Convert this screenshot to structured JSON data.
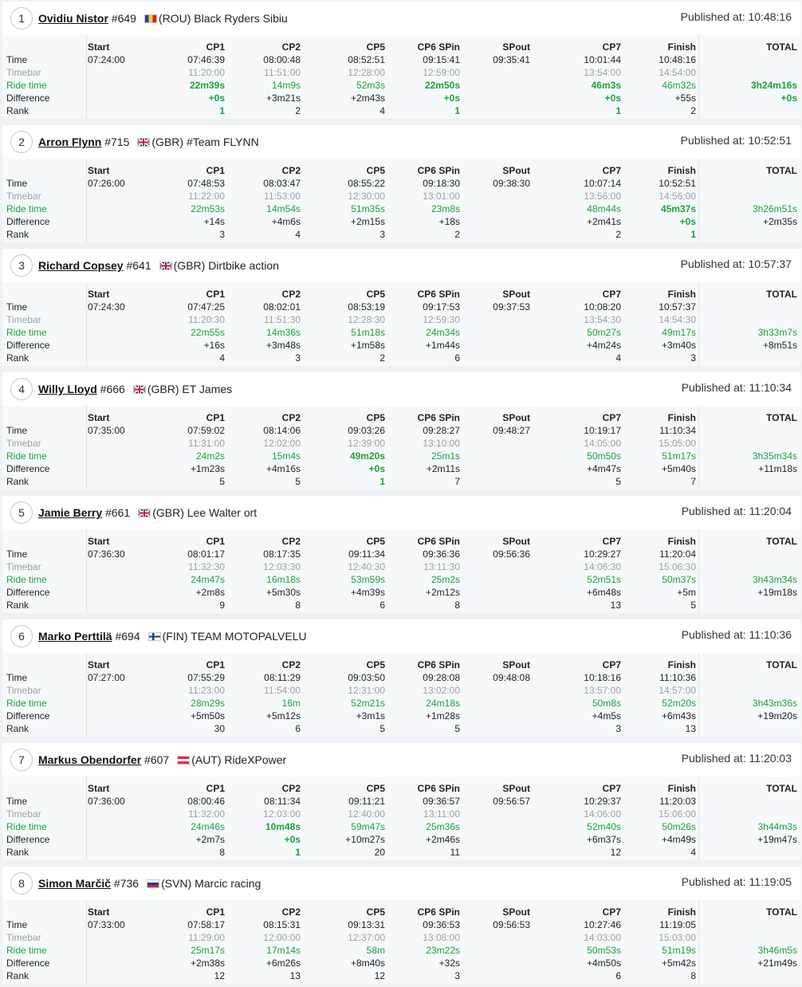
{
  "columns": [
    "Start",
    "CP1",
    "CP2",
    "CP5",
    "CP6 SPin",
    "SPout",
    "CP7",
    "Finish",
    "TOTAL"
  ],
  "row_labels": [
    "Time",
    "Timebar",
    "Ride time",
    "Difference",
    "Rank"
  ],
  "published_label": "Published at: ",
  "colors": {
    "ride_time": "#1e9e3e",
    "timebar": "#9aa0a6",
    "background": "#eef2f6",
    "table_bg": "#f6f9fc"
  },
  "results": [
    {
      "pos": "1",
      "name": "Ovidiu Nistor",
      "number": "#649",
      "flag": "flag-rou",
      "team": "(ROU) Black Ryders Sibiu",
      "published": "10:48:16",
      "time": [
        "07:24:00",
        "07:46:39",
        "08:00:48",
        "08:52:51",
        "09:15:41",
        "09:35:41",
        "10:01:44",
        "10:48:16",
        ""
      ],
      "timebar": [
        "",
        "11:20:00",
        "11:51:00",
        "12:28:00",
        "12:59:00",
        "",
        "13:54:00",
        "14:54:00",
        ""
      ],
      "ride": [
        "",
        "22m39s",
        "14m9s",
        "52m3s",
        "22m50s",
        "",
        "46m3s",
        "46m32s",
        "3h24m16s"
      ],
      "diff": [
        "",
        "+0s",
        "+3m21s",
        "+2m43s",
        "+0s",
        "",
        "+0s",
        "+55s",
        "+0s"
      ],
      "rank": [
        "",
        "1",
        "2",
        "4",
        "1",
        "",
        "1",
        "2",
        ""
      ],
      "best": [
        "ride.1",
        "diff.1",
        "rank.1",
        "ride.4",
        "diff.4",
        "rank.4",
        "ride.6",
        "diff.6",
        "rank.6",
        "ride.8",
        "diff.8"
      ]
    },
    {
      "pos": "2",
      "name": "Arron Flynn",
      "number": "#715",
      "flag": "flag-gbr",
      "team": "(GBR) #Team FLYNN",
      "published": "10:52:51",
      "time": [
        "07:26:00",
        "07:48:53",
        "08:03:47",
        "08:55:22",
        "09:18:30",
        "09:38:30",
        "10:07:14",
        "10:52:51",
        ""
      ],
      "timebar": [
        "",
        "11:22:00",
        "11:53:00",
        "12:30:00",
        "13:01:00",
        "",
        "13:56:00",
        "14:56:00",
        ""
      ],
      "ride": [
        "",
        "22m53s",
        "14m54s",
        "51m35s",
        "23m8s",
        "",
        "48m44s",
        "45m37s",
        "3h26m51s"
      ],
      "diff": [
        "",
        "+14s",
        "+4m6s",
        "+2m15s",
        "+18s",
        "",
        "+2m41s",
        "+0s",
        "+2m35s"
      ],
      "rank": [
        "",
        "3",
        "4",
        "3",
        "2",
        "",
        "2",
        "1",
        ""
      ],
      "best": [
        "ride.7",
        "diff.7",
        "rank.7"
      ]
    },
    {
      "pos": "3",
      "name": "Richard Copsey",
      "number": "#641",
      "flag": "flag-gbr",
      "team": "(GBR) Dirtbike action",
      "published": "10:57:37",
      "time": [
        "07:24:30",
        "07:47:25",
        "08:02:01",
        "08:53:19",
        "09:17:53",
        "09:37:53",
        "10:08:20",
        "10:57:37",
        ""
      ],
      "timebar": [
        "",
        "11:20:30",
        "11:51:30",
        "12:28:30",
        "12:59:30",
        "",
        "13:54:30",
        "14:54:30",
        ""
      ],
      "ride": [
        "",
        "22m55s",
        "14m36s",
        "51m18s",
        "24m34s",
        "",
        "50m27s",
        "49m17s",
        "3h33m7s"
      ],
      "diff": [
        "",
        "+16s",
        "+3m48s",
        "+1m58s",
        "+1m44s",
        "",
        "+4m24s",
        "+3m40s",
        "+8m51s"
      ],
      "rank": [
        "",
        "4",
        "3",
        "2",
        "6",
        "",
        "4",
        "3",
        ""
      ],
      "best": []
    },
    {
      "pos": "4",
      "name": "Willy Lloyd",
      "number": "#666",
      "flag": "flag-gbr",
      "team": "(GBR) ET James",
      "published": "11:10:34",
      "time": [
        "07:35:00",
        "07:59:02",
        "08:14:06",
        "09:03:26",
        "09:28:27",
        "09:48:27",
        "10:19:17",
        "11:10:34",
        ""
      ],
      "timebar": [
        "",
        "11:31:00",
        "12:02:00",
        "12:39:00",
        "13:10:00",
        "",
        "14:05:00",
        "15:05:00",
        ""
      ],
      "ride": [
        "",
        "24m2s",
        "15m4s",
        "49m20s",
        "25m1s",
        "",
        "50m50s",
        "51m17s",
        "3h35m34s"
      ],
      "diff": [
        "",
        "+1m23s",
        "+4m16s",
        "+0s",
        "+2m11s",
        "",
        "+4m47s",
        "+5m40s",
        "+11m18s"
      ],
      "rank": [
        "",
        "5",
        "5",
        "1",
        "7",
        "",
        "5",
        "7",
        ""
      ],
      "best": [
        "ride.3",
        "diff.3",
        "rank.3"
      ]
    },
    {
      "pos": "5",
      "name": "Jamie Berry",
      "number": "#661",
      "flag": "flag-gbr",
      "team": "(GBR) Lee Walter ort",
      "published": "11:20:04",
      "time": [
        "07:36:30",
        "08:01:17",
        "08:17:35",
        "09:11:34",
        "09:36:36",
        "09:56:36",
        "10:29:27",
        "11:20:04",
        ""
      ],
      "timebar": [
        "",
        "11:32:30",
        "12:03:30",
        "12:40:30",
        "13:11:30",
        "",
        "14:06:30",
        "15:06:30",
        ""
      ],
      "ride": [
        "",
        "24m47s",
        "16m18s",
        "53m59s",
        "25m2s",
        "",
        "52m51s",
        "50m37s",
        "3h43m34s"
      ],
      "diff": [
        "",
        "+2m8s",
        "+5m30s",
        "+4m39s",
        "+2m12s",
        "",
        "+6m48s",
        "+5m",
        "+19m18s"
      ],
      "rank": [
        "",
        "9",
        "8",
        "6",
        "8",
        "",
        "13",
        "5",
        ""
      ],
      "best": []
    },
    {
      "pos": "6",
      "name": "Marko Perttilä",
      "number": "#694",
      "flag": "flag-fin",
      "team": "(FIN) TEAM MOTOPALVELU",
      "published": "11:10:36",
      "time": [
        "07:27:00",
        "07:55:29",
        "08:11:29",
        "09:03:50",
        "09:28:08",
        "09:48:08",
        "10:18:16",
        "11:10:36",
        ""
      ],
      "timebar": [
        "",
        "11:23:00",
        "11:54:00",
        "12:31:00",
        "13:02:00",
        "",
        "13:57:00",
        "14:57:00",
        ""
      ],
      "ride": [
        "",
        "28m29s",
        "16m",
        "52m21s",
        "24m18s",
        "",
        "50m8s",
        "52m20s",
        "3h43m36s"
      ],
      "diff": [
        "",
        "+5m50s",
        "+5m12s",
        "+3m1s",
        "+1m28s",
        "",
        "+4m5s",
        "+6m43s",
        "+19m20s"
      ],
      "rank": [
        "",
        "30",
        "6",
        "5",
        "5",
        "",
        "3",
        "13",
        ""
      ],
      "best": []
    },
    {
      "pos": "7",
      "name": "Markus Obendorfer",
      "number": "#607",
      "flag": "flag-aut",
      "team": "(AUT) RideXPower",
      "published": "11:20:03",
      "time": [
        "07:36:00",
        "08:00:46",
        "08:11:34",
        "09:11:21",
        "09:36:57",
        "09:56:57",
        "10:29:37",
        "11:20:03",
        ""
      ],
      "timebar": [
        "",
        "11:32:00",
        "12:03:00",
        "12:40:00",
        "13:11:00",
        "",
        "14:06:00",
        "15:06:00",
        ""
      ],
      "ride": [
        "",
        "24m46s",
        "10m48s",
        "59m47s",
        "25m36s",
        "",
        "52m40s",
        "50m26s",
        "3h44m3s"
      ],
      "diff": [
        "",
        "+2m7s",
        "+0s",
        "+10m27s",
        "+2m46s",
        "",
        "+6m37s",
        "+4m49s",
        "+19m47s"
      ],
      "rank": [
        "",
        "8",
        "1",
        "20",
        "11",
        "",
        "12",
        "4",
        ""
      ],
      "best": [
        "ride.2",
        "diff.2",
        "rank.2"
      ]
    },
    {
      "pos": "8",
      "name": "Simon Marčič",
      "number": "#736",
      "flag": "flag-svn",
      "team": "(SVN) Marcic racing",
      "published": "11:19:05",
      "time": [
        "07:33:00",
        "07:58:17",
        "08:15:31",
        "09:13:31",
        "09:36:53",
        "09:56:53",
        "10:27:46",
        "11:19:05",
        ""
      ],
      "timebar": [
        "",
        "11:29:00",
        "12:00:00",
        "12:37:00",
        "13:08:00",
        "",
        "14:03:00",
        "15:03:00",
        ""
      ],
      "ride": [
        "",
        "25m17s",
        "17m14s",
        "58m",
        "23m22s",
        "",
        "50m53s",
        "51m19s",
        "3h46m5s"
      ],
      "diff": [
        "",
        "+2m38s",
        "+6m26s",
        "+8m40s",
        "+32s",
        "",
        "+4m50s",
        "+5m42s",
        "+21m49s"
      ],
      "rank": [
        "",
        "12",
        "13",
        "12",
        "3",
        "",
        "6",
        "8",
        ""
      ],
      "best": []
    }
  ]
}
